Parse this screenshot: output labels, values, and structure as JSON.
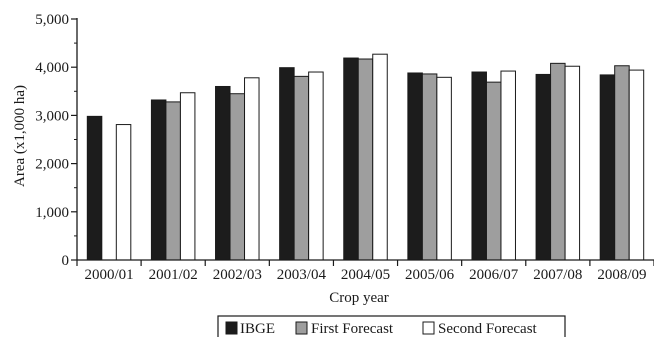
{
  "chart_data": {
    "type": "bar",
    "title": "",
    "xlabel": "Crop year",
    "ylabel": "Area (x1,000 ha)",
    "ylim": [
      0,
      5000
    ],
    "yticks": [
      "0",
      "1,000",
      "2,000",
      "3,000",
      "4,000",
      "5,000"
    ],
    "ytick_values": [
      0,
      1000,
      2000,
      3000,
      4000,
      5000
    ],
    "categories": [
      "2000/01",
      "2001/02",
      "2002/03",
      "2003/04",
      "2004/05",
      "2005/06",
      "2006/07",
      "2007/08",
      "2008/09"
    ],
    "series": [
      {
        "name": "IBGE",
        "color": "#1c1c1c",
        "values": [
          2980,
          3320,
          3600,
          3990,
          4190,
          3880,
          3900,
          3850,
          3840
        ]
      },
      {
        "name": "First Forecast",
        "color": "#9e9e9e",
        "values": [
          null,
          3280,
          3450,
          3810,
          4170,
          3860,
          3690,
          4080,
          4030
        ]
      },
      {
        "name": "Second Forecast",
        "color": "#ffffff",
        "values": [
          2810,
          3470,
          3780,
          3900,
          4270,
          3790,
          3920,
          4020,
          3940
        ]
      }
    ],
    "grid": false,
    "legend_position": "bottom-center"
  }
}
